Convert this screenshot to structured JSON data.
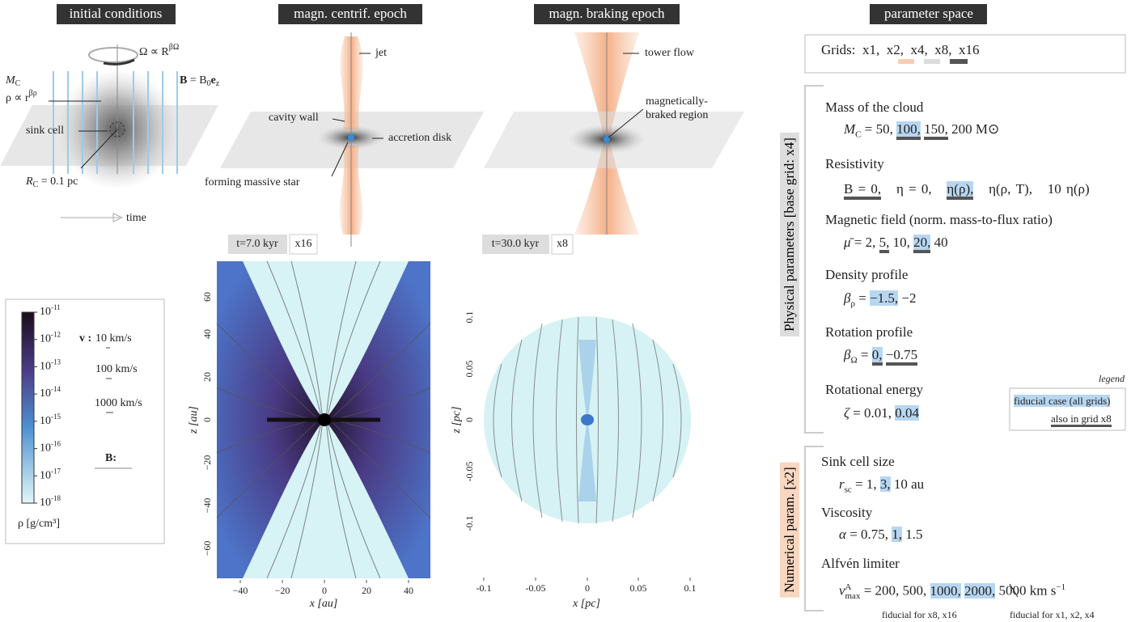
{
  "initial": {
    "title": "initial conditions",
    "omega": "Ω ∝ R",
    "omega_exp": "βΩ",
    "mass": "M",
    "mass_sub": "C",
    "rho": "ρ ∝ r",
    "rho_exp": "βρ",
    "field": "B",
    "field_eq": " = B",
    "field_sub": "0",
    "field_vec": "e",
    "field_vec_sub": "z",
    "sink": "sink cell",
    "radius": "R",
    "radius_sub": "C",
    "radius_val": " = 0.1 pc",
    "time": "time"
  },
  "centrif": {
    "title": "magn. centrif. epoch",
    "jet": "jet",
    "wall": "cavity wall",
    "disk": "accretion disk",
    "star": "forming massive star",
    "time": "t=7.0 kyr",
    "grid": "x16"
  },
  "braking": {
    "title": "magn. braking epoch",
    "tower": "tower flow",
    "region": [
      "magnetically-",
      "braked region"
    ],
    "time": "t=30.0 kyr",
    "grid": "x8"
  },
  "plot_au": {
    "xticks": [
      "−40",
      "−20",
      "0",
      "20",
      "40"
    ],
    "yticks": [
      "60",
      "40",
      "20",
      "0",
      "−20",
      "−40",
      "−60"
    ],
    "xlabel": "x [au]",
    "ylabel": "z [au]"
  },
  "plot_pc": {
    "xticks": [
      "-0.1",
      "-0.05",
      "0",
      "0.05",
      "0.1"
    ],
    "yticks": [
      "0.1",
      "0.05",
      "0",
      "-0.05",
      "-0.1"
    ],
    "xlabel": "x [pc]",
    "ylabel": "z [pc]"
  },
  "colorbar": {
    "ticks": [
      {
        "base": "10",
        "exp": "-11"
      },
      {
        "base": "10",
        "exp": "-12"
      },
      {
        "base": "10",
        "exp": "-13"
      },
      {
        "base": "10",
        "exp": "-14"
      },
      {
        "base": "10",
        "exp": "-15"
      },
      {
        "base": "10",
        "exp": "-16"
      },
      {
        "base": "10",
        "exp": "-17"
      },
      {
        "base": "10",
        "exp": "-18"
      }
    ],
    "label": "ρ [g/cm³]",
    "v_label": "v :",
    "speeds": [
      "10 km/s",
      "100 km/s",
      "1000 km/s"
    ],
    "b_label": "B:"
  },
  "parameters": {
    "title": "parameter space",
    "grids_label": "Grids:",
    "grids": [
      "x1,",
      "x2,",
      "x4,",
      "x8,",
      "x16"
    ],
    "physical_label": "Physical parameters [base grid: x4]",
    "numerical_label": "Numerical param. [x2]",
    "physical": [
      {
        "name": "Mass of the cloud",
        "symbol": "M",
        "sub": "C",
        "relation": "=",
        "values": [
          "50,",
          "100,",
          "150,",
          "200 M⊙"
        ]
      },
      {
        "name": "Resistivity",
        "values": [
          "B = 0,",
          "η = 0,",
          "η(ρ),",
          "η(ρ, T),",
          "10 η(ρ)"
        ]
      },
      {
        "name": "Magnetic field (norm. mass-to-flux ratio)",
        "symbol": "μ̄",
        "relation": "=",
        "values": [
          "2,",
          "5,",
          "10,",
          "20,",
          "40"
        ]
      },
      {
        "name": "Density profile",
        "symbol": "β",
        "sub": "ρ",
        "relation": "=",
        "values": [
          "−1.5,",
          "−2"
        ]
      },
      {
        "name": "Rotation profile",
        "symbol": "β",
        "sub": "Ω",
        "relation": "=",
        "values": [
          "0,",
          "−0.75"
        ]
      },
      {
        "name": "Rotational energy",
        "symbol": "ζ",
        "relation": "=",
        "values": [
          "0.01,",
          "0.04"
        ]
      }
    ],
    "legend": {
      "title": "legend",
      "fiducial": "fiducial case (all grids)",
      "x8": "also in grid x8"
    },
    "numerical": [
      {
        "name": "Sink cell size",
        "symbol": "r",
        "sub": "sc",
        "relation": "=",
        "values": [
          "1,",
          "3,",
          "10 au"
        ]
      },
      {
        "name": "Viscosity",
        "symbol": "α",
        "relation": "=",
        "values": [
          "0.75,",
          "1,",
          "1.5"
        ]
      },
      {
        "name": "Alfvén limiter",
        "symbol": "v",
        "sup": "A",
        "sub": "max",
        "relation": "=",
        "values": [
          "200,",
          "500,",
          "1000,",
          "2000,",
          "5000 km s"
        ],
        "unit_exp": "−1"
      }
    ],
    "notes": [
      "fiducial for x8, x16",
      "fiducial for x1, x2, x4"
    ]
  }
}
